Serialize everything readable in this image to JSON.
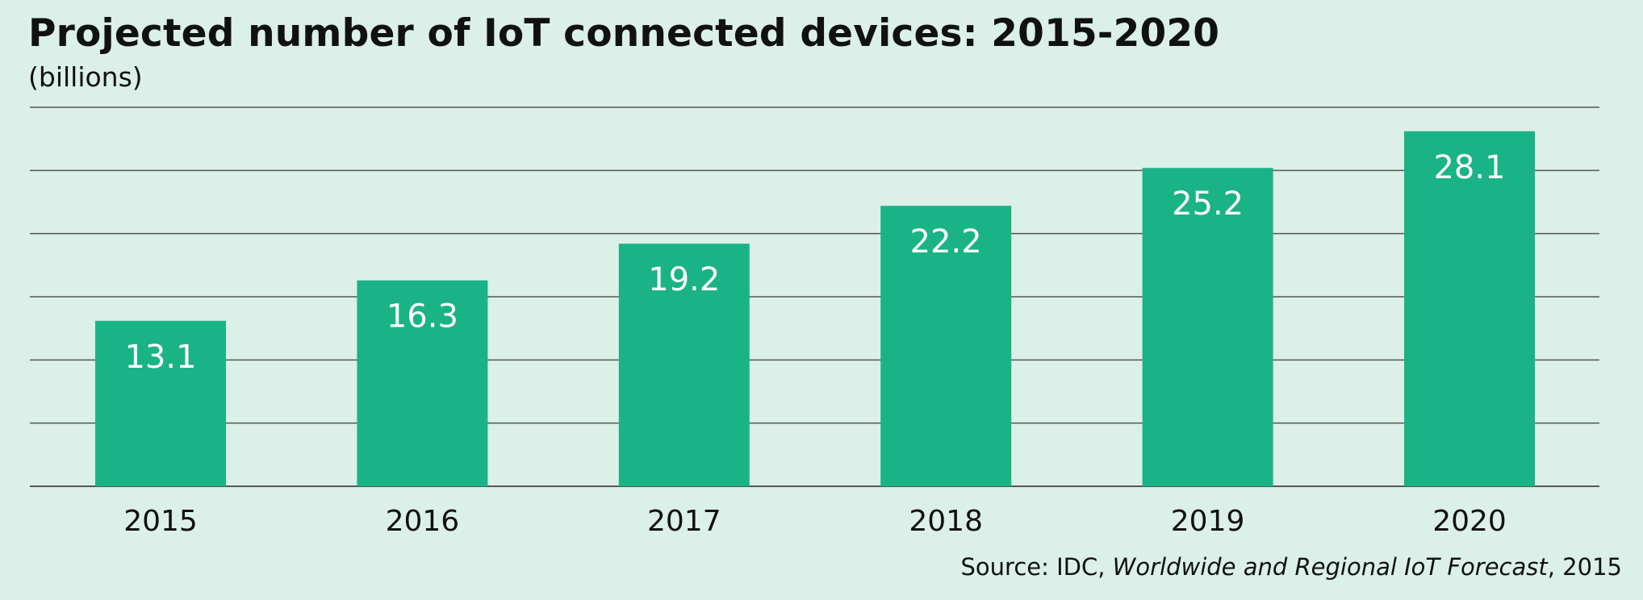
{
  "chart_data": {
    "type": "bar",
    "title": "Projected number of IoT connected devices: 2015-2020",
    "subtitle": "(billions)",
    "categories": [
      "2015",
      "2016",
      "2017",
      "2018",
      "2019",
      "2020"
    ],
    "values": [
      13.1,
      16.3,
      19.2,
      22.2,
      25.2,
      28.1
    ],
    "value_labels": [
      "13.1",
      "16.3",
      "19.2",
      "22.2",
      "25.2",
      "28.1"
    ],
    "ylim": [
      0,
      30
    ],
    "ytick_step": 5,
    "grid": true,
    "xlabel": "",
    "ylabel": ""
  },
  "source": {
    "prefix": "Source: IDC, ",
    "italic": "Worldwide and Regional IoT Forecast",
    "suffix": ", 2015"
  },
  "colors": {
    "background": "#dbf0e8",
    "bar": "#1ab386",
    "bar_label": "#ffffff",
    "gridline": "#555555"
  }
}
